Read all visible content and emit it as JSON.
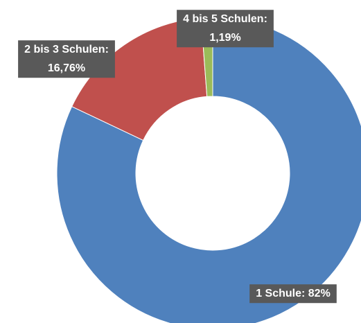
{
  "chart_data": {
    "type": "donut",
    "categories": [
      "1 Schule:",
      "2 bis 3 Schulen:",
      "4 bis 5 Schulen:"
    ],
    "values": [
      82,
      16.76,
      1.19
    ],
    "value_labels": [
      "82%",
      "16,76%",
      "1,19%"
    ],
    "colors": [
      "#4f81bd",
      "#c0504d",
      "#9bbb59"
    ]
  }
}
